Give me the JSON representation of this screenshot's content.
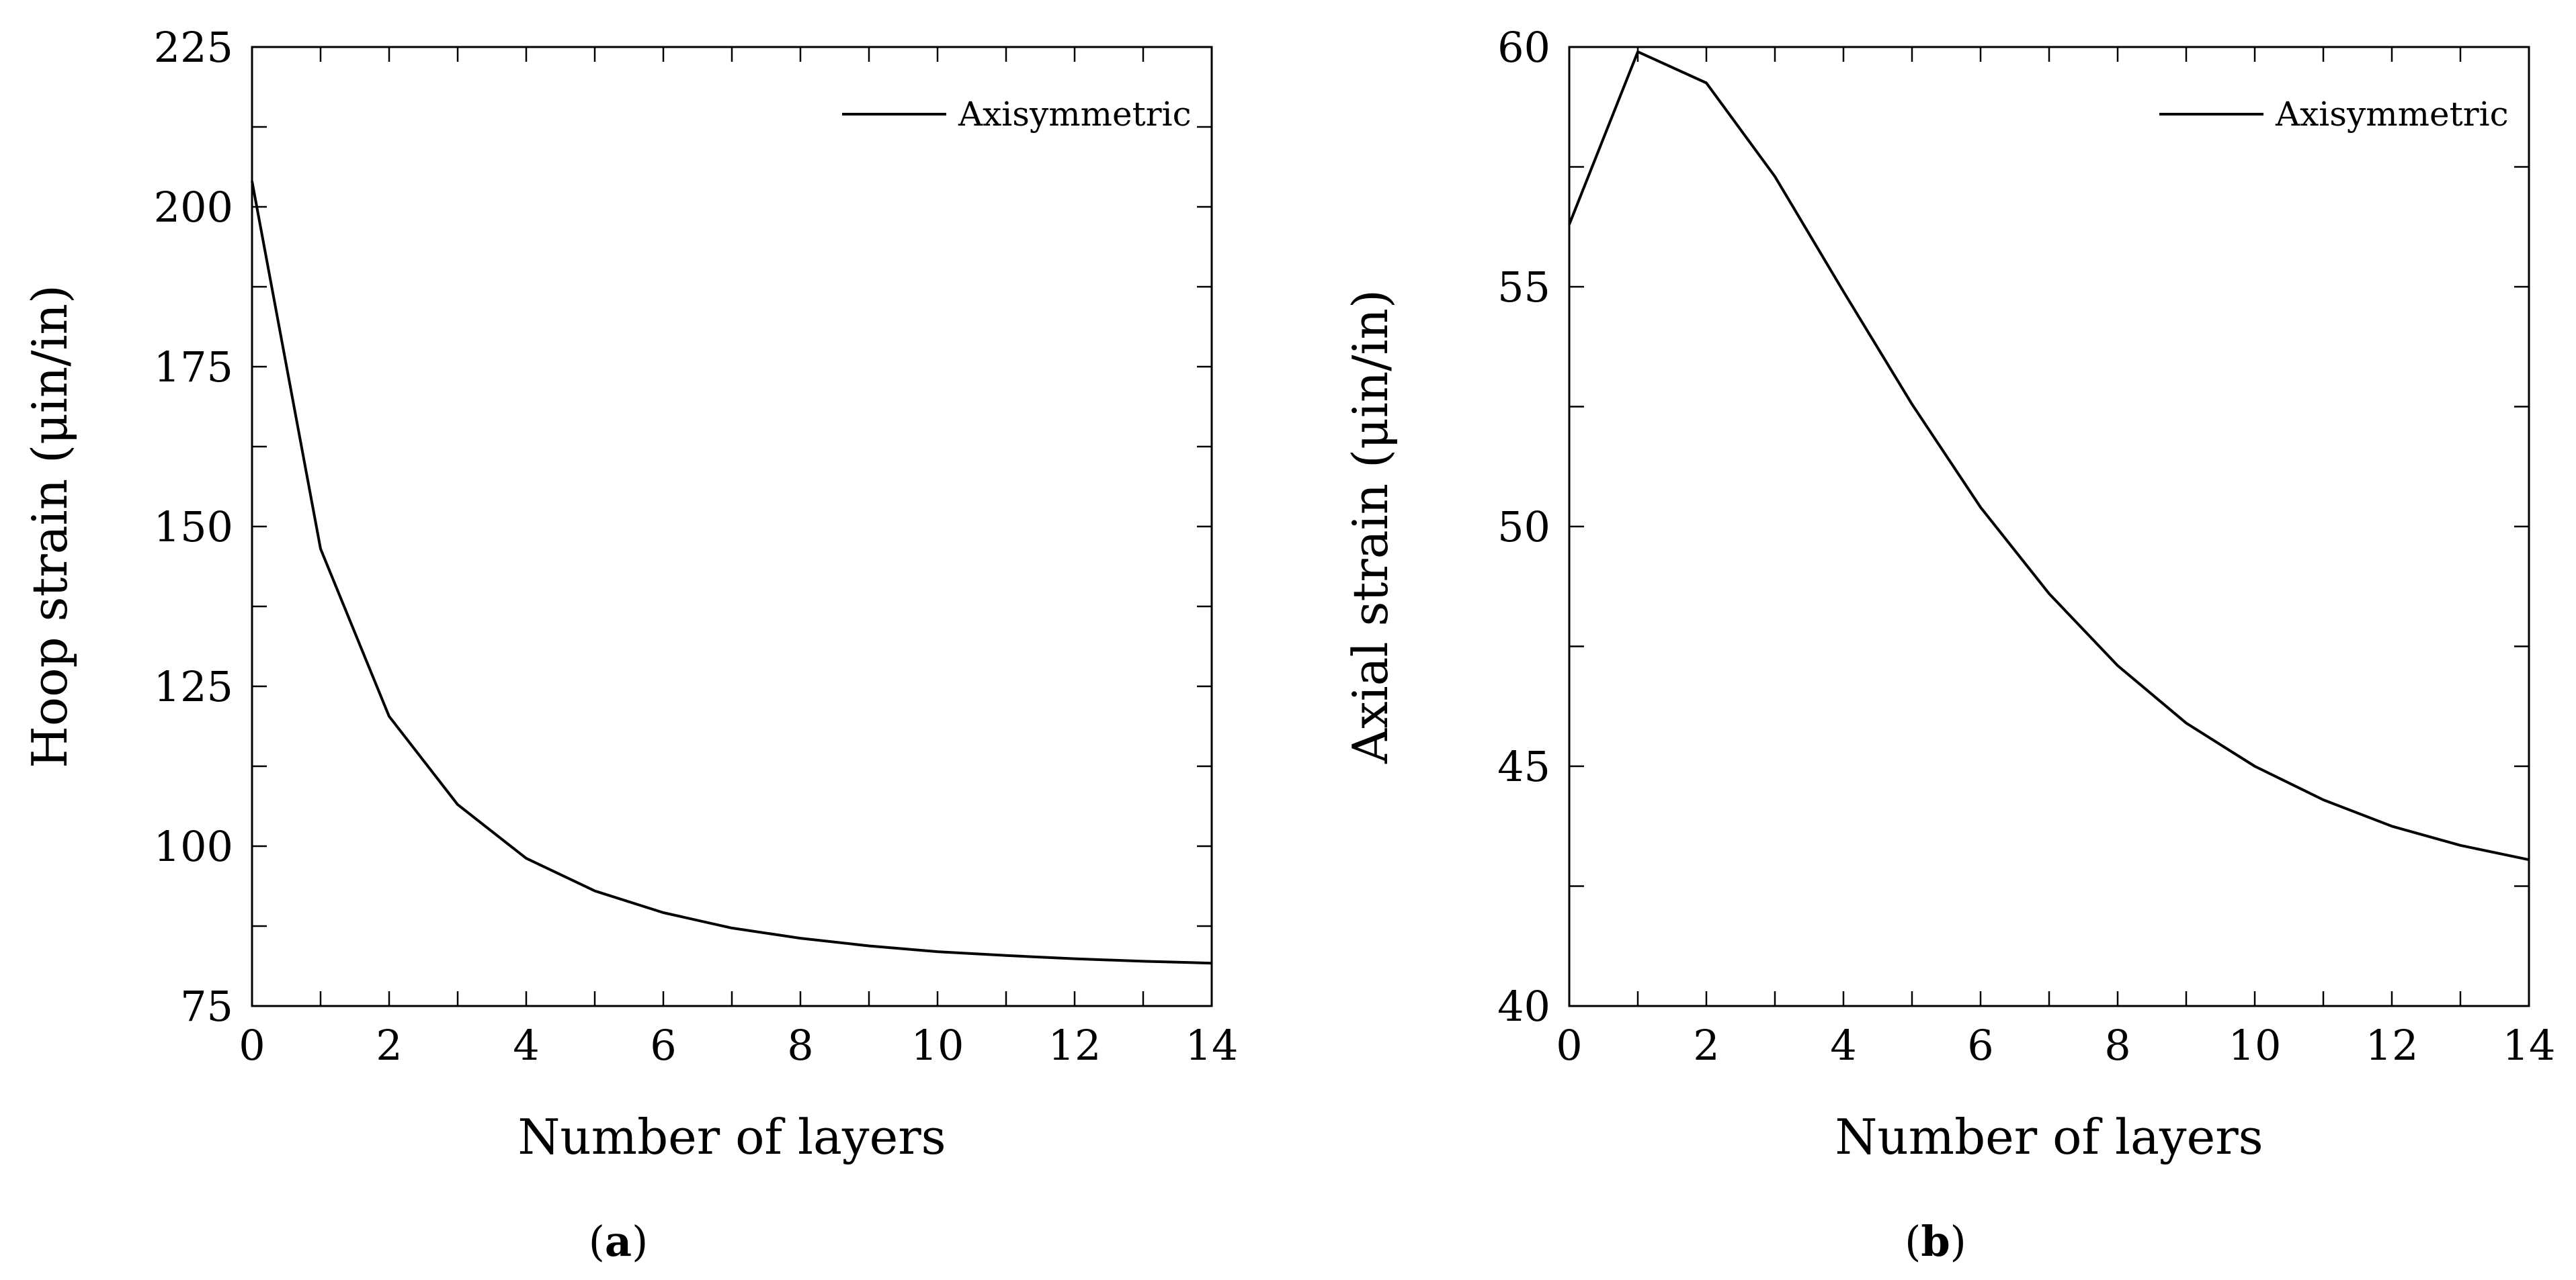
{
  "chart_data": [
    {
      "type": "line",
      "panel_label": "a",
      "xlabel": "Number of layers",
      "ylabel": "Hoop strain (μin/in)",
      "xlim": [
        0,
        14
      ],
      "ylim": [
        75,
        225
      ],
      "xticks": [
        0,
        2,
        4,
        6,
        8,
        10,
        12,
        14
      ],
      "yticks": [
        75,
        100,
        125,
        150,
        175,
        200,
        225
      ],
      "legend_position": "top-right",
      "grid": false,
      "series": [
        {
          "name": "Axisymmetric",
          "x": [
            0,
            1,
            2,
            3,
            4,
            5,
            6,
            7,
            8,
            9,
            10,
            11,
            12,
            13,
            14
          ],
          "y": [
            204,
            146.5,
            120.3,
            106.5,
            98.1,
            93.0,
            89.6,
            87.2,
            85.6,
            84.4,
            83.5,
            82.9,
            82.4,
            82.0,
            81.7
          ]
        }
      ]
    },
    {
      "type": "line",
      "panel_label": "b",
      "xlabel": "Number of layers",
      "ylabel": "Axial strain (μin/in)",
      "xlim": [
        0,
        14
      ],
      "ylim": [
        40,
        60
      ],
      "xticks": [
        0,
        2,
        4,
        6,
        8,
        10,
        12,
        14
      ],
      "yticks": [
        40,
        45,
        50,
        55,
        60
      ],
      "legend_position": "top-right",
      "grid": false,
      "series": [
        {
          "name": "Axisymmetric",
          "x": [
            0,
            1,
            2,
            3,
            4,
            5,
            6,
            7,
            8,
            9,
            10,
            11,
            12,
            13,
            14
          ],
          "y": [
            56.3,
            59.9,
            59.25,
            57.3,
            54.9,
            52.55,
            50.4,
            48.6,
            47.1,
            45.9,
            45.0,
            44.3,
            43.75,
            43.35,
            43.05
          ]
        }
      ]
    }
  ]
}
